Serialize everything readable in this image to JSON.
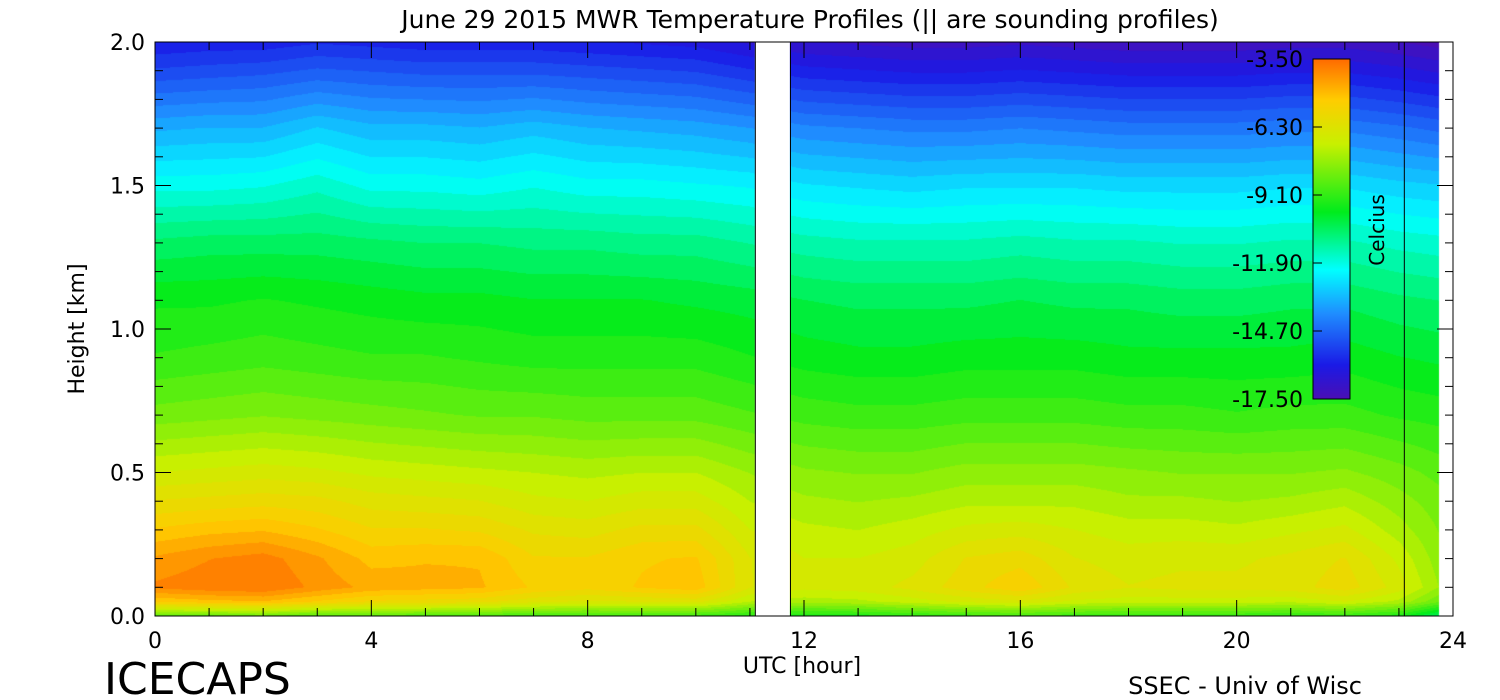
{
  "chart_data": {
    "type": "heatmap",
    "title": "June 29 2015 MWR Temperature Profiles (|| are sounding profiles)",
    "xlabel": "UTC [hour]",
    "ylabel": "Height [km]",
    "xlim": [
      0,
      24
    ],
    "ylim": [
      0,
      2.0
    ],
    "x_ticks": [
      0,
      4,
      8,
      12,
      16,
      20,
      24
    ],
    "x_tick_labels": [
      "0",
      "4",
      "8",
      "12",
      "16",
      "20",
      "24"
    ],
    "y_ticks": [
      0.0,
      0.5,
      1.0,
      1.5,
      2.0
    ],
    "y_tick_labels": [
      "0.0",
      "0.5",
      "1.0",
      "1.5",
      "2.0"
    ],
    "sounding_times": [
      11.1,
      11.75,
      23.1
    ],
    "data_coverage": [
      [
        0,
        11.1
      ],
      [
        11.75,
        23.1
      ],
      [
        23.1,
        23.75
      ]
    ],
    "hours": [
      0,
      1,
      2,
      3,
      4,
      5,
      6,
      7,
      8,
      9,
      10,
      11,
      12,
      13,
      14,
      15,
      16,
      17,
      18,
      19,
      20,
      21,
      22,
      23,
      23.75
    ],
    "heights_km": [
      0.0,
      0.05,
      0.1,
      0.2,
      0.3,
      0.4,
      0.5,
      0.7,
      0.9,
      1.1,
      1.3,
      1.5,
      1.7,
      1.9,
      2.0
    ],
    "temperature_c": [
      [
        -8.5,
        -8.5,
        -8.3,
        -8.7,
        -8.6,
        -8.7,
        -8.8,
        -8.9,
        -8.9,
        -8.9,
        -9.0,
        -9.3,
        -9.5,
        -9.4,
        -9.2,
        -9.0,
        -8.9,
        -9.0,
        -9.1,
        -9.1,
        -9.1,
        -9.2,
        -9.1,
        -9.4,
        -10.6
      ],
      [
        -5.2,
        -5.0,
        -4.9,
        -5.3,
        -5.7,
        -5.8,
        -5.9,
        -6.3,
        -6.5,
        -6.4,
        -6.3,
        -7.2,
        -7.4,
        -7.3,
        -7.0,
        -6.7,
        -6.5,
        -6.9,
        -7.0,
        -7.0,
        -7.0,
        -7.1,
        -6.8,
        -7.3,
        -8.3
      ],
      [
        -4.0,
        -3.8,
        -3.7,
        -4.2,
        -4.6,
        -4.7,
        -4.8,
        -5.3,
        -5.5,
        -5.2,
        -5.0,
        -6.4,
        -6.7,
        -6.6,
        -6.3,
        -5.8,
        -5.3,
        -6.1,
        -6.4,
        -6.3,
        -6.3,
        -6.2,
        -5.8,
        -6.6,
        -7.6
      ],
      [
        -4.4,
        -4.1,
        -3.9,
        -4.4,
        -5.0,
        -4.9,
        -4.9,
        -5.6,
        -5.6,
        -5.3,
        -5.2,
        -6.4,
        -6.8,
        -6.8,
        -6.6,
        -6.0,
        -5.8,
        -6.4,
        -6.6,
        -6.5,
        -6.5,
        -6.3,
        -6.0,
        -6.9,
        -7.8
      ],
      [
        -5.2,
        -5.0,
        -4.9,
        -5.2,
        -5.6,
        -5.6,
        -5.7,
        -6.1,
        -6.2,
        -5.9,
        -5.9,
        -6.8,
        -7.1,
        -7.2,
        -7.0,
        -6.7,
        -6.6,
        -6.8,
        -7.0,
        -7.0,
        -7.1,
        -6.9,
        -6.7,
        -7.4,
        -8.0
      ],
      [
        -6.0,
        -5.9,
        -5.8,
        -5.9,
        -6.2,
        -6.3,
        -6.4,
        -6.7,
        -6.8,
        -6.6,
        -6.6,
        -7.2,
        -7.5,
        -7.6,
        -7.5,
        -7.3,
        -7.3,
        -7.3,
        -7.5,
        -7.5,
        -7.6,
        -7.5,
        -7.3,
        -7.8,
        -8.2
      ],
      [
        -6.8,
        -6.7,
        -6.6,
        -6.7,
        -6.9,
        -7.0,
        -7.1,
        -7.2,
        -7.3,
        -7.2,
        -7.2,
        -7.6,
        -7.9,
        -8.0,
        -8.0,
        -7.8,
        -7.8,
        -7.8,
        -7.9,
        -8.0,
        -8.0,
        -8.0,
        -7.9,
        -8.2,
        -8.5
      ],
      [
        -8.2,
        -8.1,
        -8.0,
        -8.1,
        -8.2,
        -8.3,
        -8.4,
        -8.4,
        -8.5,
        -8.5,
        -8.5,
        -8.7,
        -8.9,
        -9.0,
        -9.0,
        -8.9,
        -8.9,
        -8.9,
        -9.0,
        -9.0,
        -9.1,
        -9.0,
        -9.0,
        -9.2,
        -9.3
      ],
      [
        -9.1,
        -9.0,
        -8.9,
        -9.0,
        -9.1,
        -9.1,
        -9.2,
        -9.3,
        -9.3,
        -9.3,
        -9.3,
        -9.5,
        -9.7,
        -9.8,
        -9.8,
        -9.7,
        -9.7,
        -9.7,
        -9.8,
        -9.8,
        -9.8,
        -9.8,
        -9.7,
        -9.9,
        -10.0
      ],
      [
        -9.6,
        -9.6,
        -9.5,
        -9.6,
        -9.7,
        -9.8,
        -9.8,
        -9.9,
        -9.9,
        -9.9,
        -10.0,
        -10.1,
        -10.3,
        -10.4,
        -10.4,
        -10.4,
        -10.3,
        -10.4,
        -10.4,
        -10.5,
        -10.5,
        -10.4,
        -10.4,
        -10.6,
        -10.7
      ],
      [
        -10.6,
        -10.5,
        -10.5,
        -10.5,
        -10.6,
        -10.7,
        -10.7,
        -10.8,
        -10.8,
        -10.9,
        -10.9,
        -11.1,
        -11.3,
        -11.4,
        -11.4,
        -11.4,
        -11.3,
        -11.4,
        -11.4,
        -11.5,
        -11.5,
        -11.4,
        -11.4,
        -11.6,
        -11.7
      ],
      [
        -12.0,
        -12.0,
        -11.9,
        -11.6,
        -12.0,
        -12.0,
        -12.1,
        -11.9,
        -12.1,
        -12.1,
        -12.2,
        -12.3,
        -12.6,
        -12.7,
        -12.8,
        -12.7,
        -12.7,
        -12.7,
        -12.8,
        -12.8,
        -12.8,
        -12.7,
        -12.7,
        -12.9,
        -13.0
      ],
      [
        -13.5,
        -13.4,
        -13.4,
        -13.0,
        -13.3,
        -13.3,
        -13.4,
        -13.2,
        -13.4,
        -13.5,
        -13.6,
        -13.8,
        -14.1,
        -14.2,
        -14.3,
        -14.3,
        -14.2,
        -14.3,
        -14.4,
        -14.4,
        -14.4,
        -14.3,
        -14.3,
        -14.5,
        -14.7
      ],
      [
        -15.3,
        -15.2,
        -15.1,
        -14.9,
        -15.0,
        -15.1,
        -15.1,
        -15.1,
        -15.2,
        -15.3,
        -15.4,
        -15.7,
        -16.0,
        -16.1,
        -16.2,
        -16.2,
        -16.1,
        -16.2,
        -16.3,
        -16.3,
        -16.3,
        -16.2,
        -16.2,
        -16.4,
        -16.6
      ],
      [
        -16.1,
        -16.0,
        -16.0,
        -15.8,
        -15.9,
        -16.0,
        -16.0,
        -16.0,
        -16.1,
        -16.2,
        -16.3,
        -16.6,
        -16.9,
        -17.0,
        -17.1,
        -17.1,
        -17.0,
        -17.1,
        -17.2,
        -17.2,
        -17.2,
        -17.1,
        -17.1,
        -17.3,
        -17.5
      ]
    ],
    "colorbar": {
      "label": "Celcius",
      "vmin": -17.5,
      "vmax": -3.5,
      "tick_values": [
        -3.5,
        -6.3,
        -9.1,
        -11.9,
        -14.7,
        -17.5
      ],
      "tick_labels": [
        "-3.50",
        "-6.30",
        "-9.10",
        "-11.90",
        "-14.70",
        "-17.50"
      ]
    },
    "grid": false
  },
  "footer": {
    "left": "ICECAPS",
    "right": "SSEC - Univ of Wisc"
  }
}
